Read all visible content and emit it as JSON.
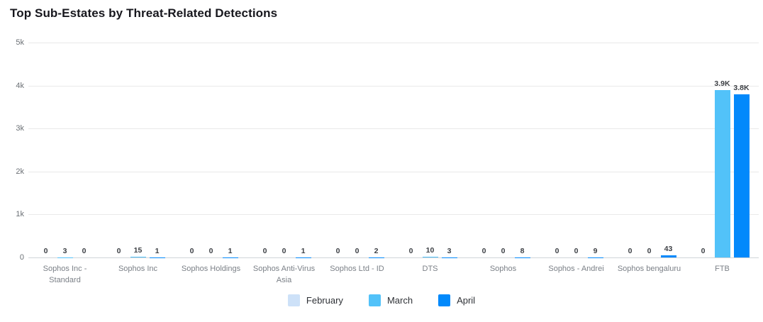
{
  "title": "Top Sub-Estates by Threat-Related Detections",
  "chart_data": {
    "type": "bar",
    "title": "Top Sub-Estates by Threat-Related Detections",
    "categories": [
      "Sophos Inc - Standard",
      "Sophos Inc",
      "Sophos Holdings",
      "Sophos Anti-Virus Asia",
      "Sophos Ltd - ID",
      "DTS",
      "Sophos",
      "Sophos - Andrei",
      "Sophos bengaluru",
      "FTB"
    ],
    "series": [
      {
        "name": "February",
        "color": "#cde1f8",
        "values": [
          0,
          0,
          0,
          0,
          0,
          0,
          0,
          0,
          0,
          0
        ]
      },
      {
        "name": "March",
        "color": "#52c2f9",
        "values": [
          3,
          15,
          0,
          0,
          0,
          10,
          0,
          0,
          0,
          3900
        ]
      },
      {
        "name": "April",
        "color": "#0289fb",
        "values": [
          0,
          1,
          1,
          1,
          2,
          3,
          8,
          9,
          43,
          3800
        ]
      }
    ],
    "value_labels": [
      [
        "0",
        "3",
        "0"
      ],
      [
        "0",
        "15",
        "1"
      ],
      [
        "0",
        "0",
        "1"
      ],
      [
        "0",
        "0",
        "1"
      ],
      [
        "0",
        "0",
        "2"
      ],
      [
        "0",
        "10",
        "3"
      ],
      [
        "0",
        "0",
        "8"
      ],
      [
        "0",
        "0",
        "9"
      ],
      [
        "0",
        "0",
        "43"
      ],
      [
        "0",
        "3.9K",
        "3.8K"
      ]
    ],
    "xlabel": "",
    "ylabel": "",
    "ylim": [
      0,
      5000
    ],
    "yticks": [
      {
        "label": "5k",
        "value": 5000
      },
      {
        "label": "4k",
        "value": 4000
      },
      {
        "label": "3k",
        "value": 3000
      },
      {
        "label": "2k",
        "value": 2000
      },
      {
        "label": "1k",
        "value": 1000
      },
      {
        "label": "0",
        "value": 0
      }
    ],
    "grid": true,
    "legend_position": "bottom"
  }
}
